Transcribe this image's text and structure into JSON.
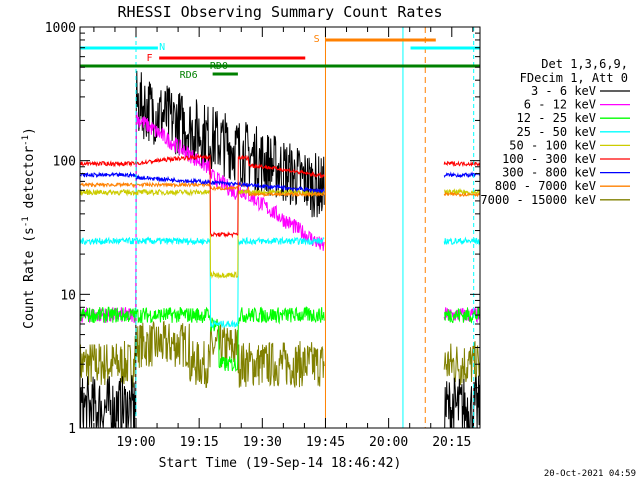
{
  "chart_data": {
    "type": "line",
    "title": "RHESSI Observing Summary Count Rates",
    "xlabel": "Start Time (19-Sep-14 18:46:42)",
    "ylabel_main": "Count Rate (s",
    "ylabel_sup1": "-1",
    "ylabel_mid": " detector",
    "ylabel_sup2": "-1",
    "ylabel_end": ")",
    "y_scale": "log",
    "ylim": [
      1,
      1000
    ],
    "x_range_minutes": [
      0,
      95
    ],
    "x_ticks": [
      {
        "label": "19:00",
        "min": 13.3
      },
      {
        "label": "19:15",
        "min": 28.3
      },
      {
        "label": "19:30",
        "min": 43.3
      },
      {
        "label": "19:45",
        "min": 58.3
      },
      {
        "label": "20:00",
        "min": 73.3
      },
      {
        "label": "20:15",
        "min": 88.3
      }
    ],
    "y_ticks": [
      {
        "label": "1",
        "value": 1
      },
      {
        "label": "10",
        "value": 10
      },
      {
        "label": "100",
        "value": 100
      },
      {
        "label": "1000",
        "value": 1000
      }
    ],
    "legend_header": [
      "Det 1,3,6,9,",
      "FDecim 1, Att 0"
    ],
    "series": [
      {
        "name": "3 - 6 keV",
        "color": "#000000"
      },
      {
        "name": "6 - 12 keV",
        "color": "#ff00ff"
      },
      {
        "name": "12 - 25 keV",
        "color": "#00ff00"
      },
      {
        "name": "25 - 50 keV",
        "color": "#00ffff"
      },
      {
        "name": "50 - 100 keV",
        "color": "#cccc00"
      },
      {
        "name": "100 - 300 keV",
        "color": "#ff0000"
      },
      {
        "name": "300 - 800 keV",
        "color": "#0000ff"
      },
      {
        "name": "800 - 7000 keV",
        "color": "#ff8000"
      },
      {
        "name": "7000 - 15000 keV",
        "color": "#808000"
      }
    ],
    "flag_bars": [
      {
        "label": "N",
        "color": "#00ffff",
        "segments": [
          [
            0,
            18.5
          ],
          [
            78.5,
            95
          ]
        ]
      },
      {
        "label": "F",
        "color": "#ff0000",
        "segments": [
          [
            18.8,
            53.5
          ]
        ]
      },
      {
        "label": "RD0",
        "color": "#008000",
        "segments": [
          [
            0,
            95
          ]
        ]
      },
      {
        "label": "RD6",
        "color": "#008000",
        "segments": [
          [
            31.5,
            37.5
          ]
        ]
      },
      {
        "label": "S",
        "color": "#ff8000",
        "segments": [
          [
            58.3,
            84.5
          ]
        ]
      }
    ],
    "footer_date": "20-Oct-2021 04:59"
  }
}
